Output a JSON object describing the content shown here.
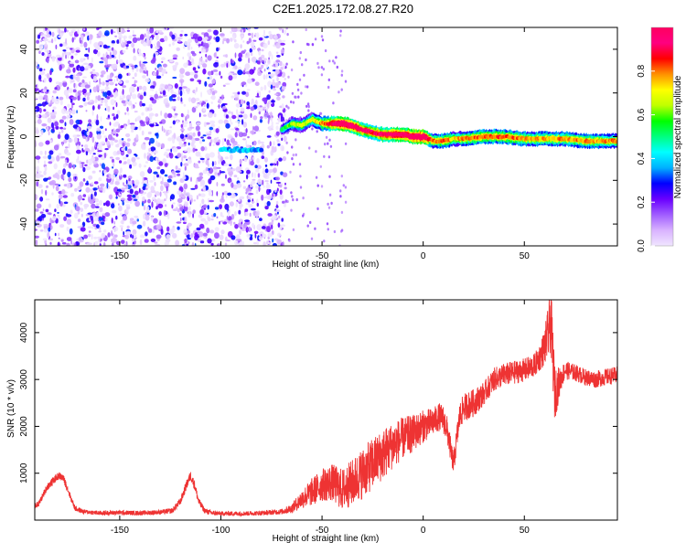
{
  "title": "C2E1.2025.172.08.27.R20",
  "chart_data": [
    {
      "type": "heatmap",
      "xlabel": "Height of straight line (km)",
      "ylabel": "Frequency (Hz)",
      "xlim": [
        -192,
        96
      ],
      "ylim": [
        -50,
        50
      ],
      "xticks": [
        -150,
        -100,
        -50,
        0,
        50
      ],
      "yticks": [
        -40,
        -20,
        0,
        20,
        40
      ],
      "colorbar": {
        "label": "Normalized spectral amplitude",
        "range": [
          0,
          1
        ],
        "ticks": [
          0.0,
          0.2,
          0.4,
          0.6,
          0.8
        ],
        "colormap": [
          "#f0e6ff",
          "#d9b3ff",
          "#a05cff",
          "#6a00ff",
          "#0000ff",
          "#00b0ff",
          "#00ffff",
          "#00ff80",
          "#00ff00",
          "#c0ff00",
          "#ffff00",
          "#ff9000",
          "#ff0000",
          "#ff0080",
          "#ff0060"
        ]
      },
      "ridge": {
        "x": [
          -70,
          -65,
          -60,
          -55,
          -50,
          -45,
          -40,
          -35,
          -30,
          -25,
          -20,
          -15,
          -10,
          -5,
          0,
          5,
          10,
          15,
          20,
          30,
          40,
          50,
          60,
          70,
          80,
          90,
          96
        ],
        "frequency": [
          3,
          6,
          5,
          8,
          6,
          6,
          6,
          5,
          3,
          2,
          1,
          1,
          1,
          0,
          0,
          -2,
          -2,
          -1,
          -1,
          0,
          0,
          -1,
          -1,
          -1,
          -2,
          -2,
          -2
        ],
        "amplitude": [
          0.3,
          0.45,
          0.5,
          0.5,
          0.6,
          0.75,
          0.85,
          0.8,
          0.75,
          0.7,
          0.75,
          0.8,
          0.8,
          0.85,
          0.9,
          0.6,
          0.65,
          0.55,
          0.6,
          0.65,
          0.65,
          0.6,
          0.6,
          0.6,
          0.6,
          0.6,
          0.6
        ]
      },
      "noise_region_x": [
        -192,
        -68
      ],
      "flat_segment": {
        "x": [
          -100,
          -80
        ],
        "frequency": -6
      },
      "line_color": "#ff0000"
    },
    {
      "type": "line",
      "xlabel": "Height of straight line (km)",
      "ylabel": "SNR (10 * v/v)",
      "xlim": [
        -192,
        96
      ],
      "ylim": [
        0,
        4700
      ],
      "xticks": [
        -150,
        -100,
        -50,
        0,
        50
      ],
      "yticks": [
        1000,
        2000,
        3000,
        4000
      ],
      "color": "#ee3333",
      "series": [
        {
          "x": [
            -192,
            -190,
            -186,
            -182,
            -180,
            -178,
            -176,
            -174,
            -172,
            -168,
            -160,
            -150,
            -140,
            -130,
            -124,
            -120,
            -117,
            -115,
            -113,
            -111,
            -108,
            -104,
            -100,
            -90,
            -80,
            -70,
            -65,
            -60,
            -55,
            -50,
            -45,
            -40,
            -35,
            -30,
            -25,
            -20,
            -15,
            -10,
            -5,
            0,
            5,
            8,
            10,
            12,
            14,
            15,
            18,
            20,
            25,
            30,
            35,
            40,
            45,
            50,
            55,
            58,
            60,
            62,
            63,
            64,
            65,
            68,
            70,
            75,
            80,
            85,
            90,
            96
          ],
          "y": [
            300,
            350,
            700,
            880,
            950,
            900,
            700,
            450,
            250,
            180,
            150,
            160,
            150,
            170,
            200,
            400,
            750,
            950,
            750,
            400,
            200,
            150,
            140,
            140,
            150,
            180,
            250,
            450,
            600,
            750,
            800,
            650,
            800,
            1000,
            1200,
            1400,
            1600,
            1750,
            1850,
            2000,
            2100,
            2200,
            2150,
            1900,
            1400,
            1200,
            2200,
            2400,
            2500,
            2700,
            3000,
            3100,
            3150,
            3200,
            3300,
            3500,
            3700,
            4000,
            4300,
            3600,
            2700,
            3000,
            3200,
            3150,
            3050,
            3000,
            3050,
            3100
          ],
          "noise_amplitude": [
            60,
            60,
            80,
            80,
            80,
            80,
            80,
            60,
            60,
            50,
            50,
            50,
            50,
            50,
            60,
            80,
            100,
            100,
            100,
            80,
            60,
            50,
            50,
            50,
            50,
            60,
            100,
            200,
            300,
            350,
            400,
            450,
            500,
            550,
            550,
            550,
            500,
            450,
            400,
            350,
            300,
            300,
            300,
            300,
            250,
            250,
            300,
            300,
            300,
            250,
            250,
            250,
            250,
            250,
            250,
            300,
            400,
            600,
            700,
            700,
            600,
            250,
            200,
            180,
            180,
            180,
            180,
            180
          ]
        }
      ]
    }
  ]
}
